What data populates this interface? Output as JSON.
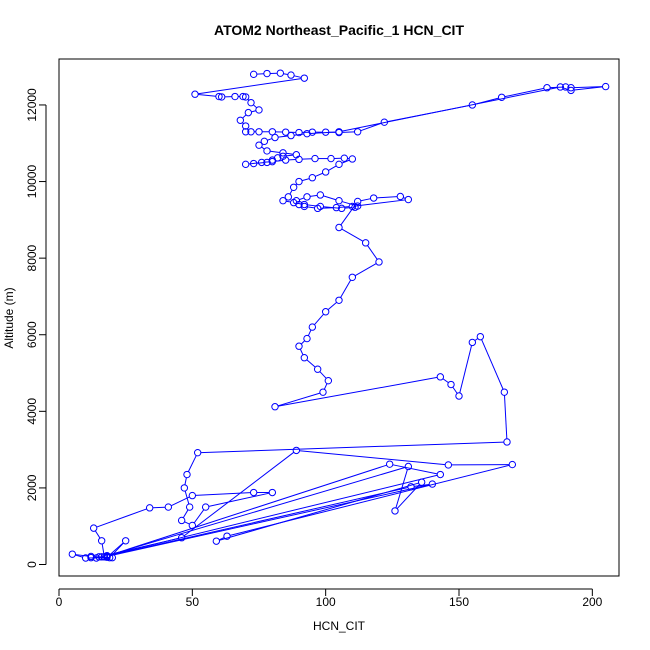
{
  "chart_data": {
    "type": "line",
    "title": "ATOM2 Northeast_Pacific_1 HCN_CIT",
    "xlabel": "HCN_CIT",
    "ylabel": "Altitude (m)",
    "xlim": [
      0,
      210
    ],
    "ylim": [
      -300,
      13200
    ],
    "x_ticks": [
      0,
      50,
      100,
      150,
      200
    ],
    "y_ticks": [
      0,
      2000,
      4000,
      6000,
      8000,
      10000,
      12000
    ],
    "colors": {
      "series": "#0000ff",
      "axis": "#000000"
    },
    "series": [
      {
        "points": [
          [
            73,
            12800
          ],
          [
            78,
            12820
          ],
          [
            83,
            12830
          ],
          [
            87,
            12780
          ],
          [
            92,
            12700
          ],
          [
            51,
            12280
          ],
          [
            60,
            12220
          ],
          [
            61,
            12210
          ],
          [
            66,
            12220
          ],
          [
            69,
            12220
          ],
          [
            70,
            12210
          ],
          [
            72,
            12060
          ],
          [
            75,
            11870
          ],
          [
            71,
            11800
          ],
          [
            68,
            11600
          ],
          [
            70,
            11450
          ],
          [
            70,
            11300
          ],
          [
            72,
            11300
          ],
          [
            75,
            11300
          ],
          [
            80,
            11300
          ],
          [
            85,
            11290
          ],
          [
            90,
            11280
          ],
          [
            95,
            11290
          ],
          [
            100,
            11290
          ],
          [
            105,
            11280
          ],
          [
            112,
            11300
          ],
          [
            122,
            11550
          ],
          [
            155,
            12000
          ],
          [
            166,
            12200
          ],
          [
            183,
            12450
          ],
          [
            190,
            12470
          ],
          [
            192,
            12450
          ],
          [
            205,
            12480
          ],
          [
            192,
            12380
          ],
          [
            188,
            12470
          ],
          [
            105,
            11300
          ],
          [
            93,
            11250
          ],
          [
            87,
            11200
          ],
          [
            81,
            11150
          ],
          [
            77,
            11050
          ],
          [
            75,
            10950
          ],
          [
            78,
            10800
          ],
          [
            84,
            10750
          ],
          [
            89,
            10700
          ],
          [
            84,
            10660
          ],
          [
            82,
            10620
          ],
          [
            80,
            10560
          ],
          [
            78,
            10500
          ],
          [
            73,
            10470
          ],
          [
            70,
            10450
          ],
          [
            76,
            10500
          ],
          [
            80,
            10520
          ],
          [
            85,
            10560
          ],
          [
            90,
            10580
          ],
          [
            96,
            10600
          ],
          [
            102,
            10600
          ],
          [
            107,
            10610
          ],
          [
            110,
            10590
          ],
          [
            105,
            10450
          ],
          [
            100,
            10250
          ],
          [
            95,
            10100
          ],
          [
            90,
            10000
          ],
          [
            88,
            9850
          ],
          [
            86,
            9600
          ],
          [
            84,
            9500
          ],
          [
            88,
            9450
          ],
          [
            92,
            9400
          ],
          [
            98,
            9350
          ],
          [
            106,
            9300
          ],
          [
            111,
            9330
          ],
          [
            112,
            9360
          ],
          [
            105,
            9500
          ],
          [
            98,
            9650
          ],
          [
            93,
            9600
          ],
          [
            89,
            9500
          ],
          [
            90,
            9400
          ],
          [
            92,
            9350
          ],
          [
            97,
            9300
          ],
          [
            104,
            9320
          ],
          [
            110,
            9350
          ],
          [
            131,
            9530
          ],
          [
            128,
            9610
          ],
          [
            118,
            9570
          ],
          [
            112,
            9480
          ],
          [
            105,
            8800
          ],
          [
            115,
            8400
          ],
          [
            120,
            7900
          ],
          [
            110,
            7500
          ],
          [
            105,
            6900
          ],
          [
            100,
            6600
          ],
          [
            95,
            6200
          ],
          [
            93,
            5900
          ],
          [
            90,
            5700
          ],
          [
            92,
            5400
          ],
          [
            97,
            5100
          ],
          [
            101,
            4800
          ],
          [
            99,
            4500
          ],
          [
            81,
            4120
          ],
          [
            143,
            4900
          ],
          [
            147,
            4700
          ],
          [
            150,
            4400
          ],
          [
            155,
            5800
          ],
          [
            158,
            5950
          ],
          [
            167,
            4500
          ],
          [
            168,
            3200
          ],
          [
            52,
            2920
          ],
          [
            48,
            2350
          ],
          [
            47,
            2000
          ],
          [
            49,
            1500
          ],
          [
            46,
            1150
          ],
          [
            50,
            1020
          ],
          [
            55,
            1500
          ],
          [
            80,
            1880
          ],
          [
            73,
            1880
          ],
          [
            50,
            1800
          ],
          [
            41,
            1500
          ],
          [
            34,
            1480
          ],
          [
            13,
            950
          ],
          [
            16,
            620
          ],
          [
            17,
            200
          ],
          [
            12,
            180
          ],
          [
            16,
            200
          ],
          [
            18,
            190
          ],
          [
            25,
            620
          ],
          [
            19,
            180
          ],
          [
            10,
            170
          ],
          [
            5,
            270
          ],
          [
            12,
            210
          ],
          [
            20,
            180
          ],
          [
            14,
            170
          ],
          [
            15,
            200
          ],
          [
            46,
            700
          ],
          [
            89,
            2980
          ],
          [
            146,
            2600
          ],
          [
            170,
            2610
          ],
          [
            63,
            740
          ],
          [
            59,
            610
          ],
          [
            136,
            2150
          ],
          [
            126,
            1400
          ],
          [
            131,
            2560
          ],
          [
            18,
            230
          ],
          [
            143,
            2350
          ],
          [
            124,
            2620
          ],
          [
            18,
            220
          ],
          [
            132,
            2030
          ],
          [
            140,
            2100
          ],
          [
            18,
            210
          ]
        ]
      }
    ]
  }
}
